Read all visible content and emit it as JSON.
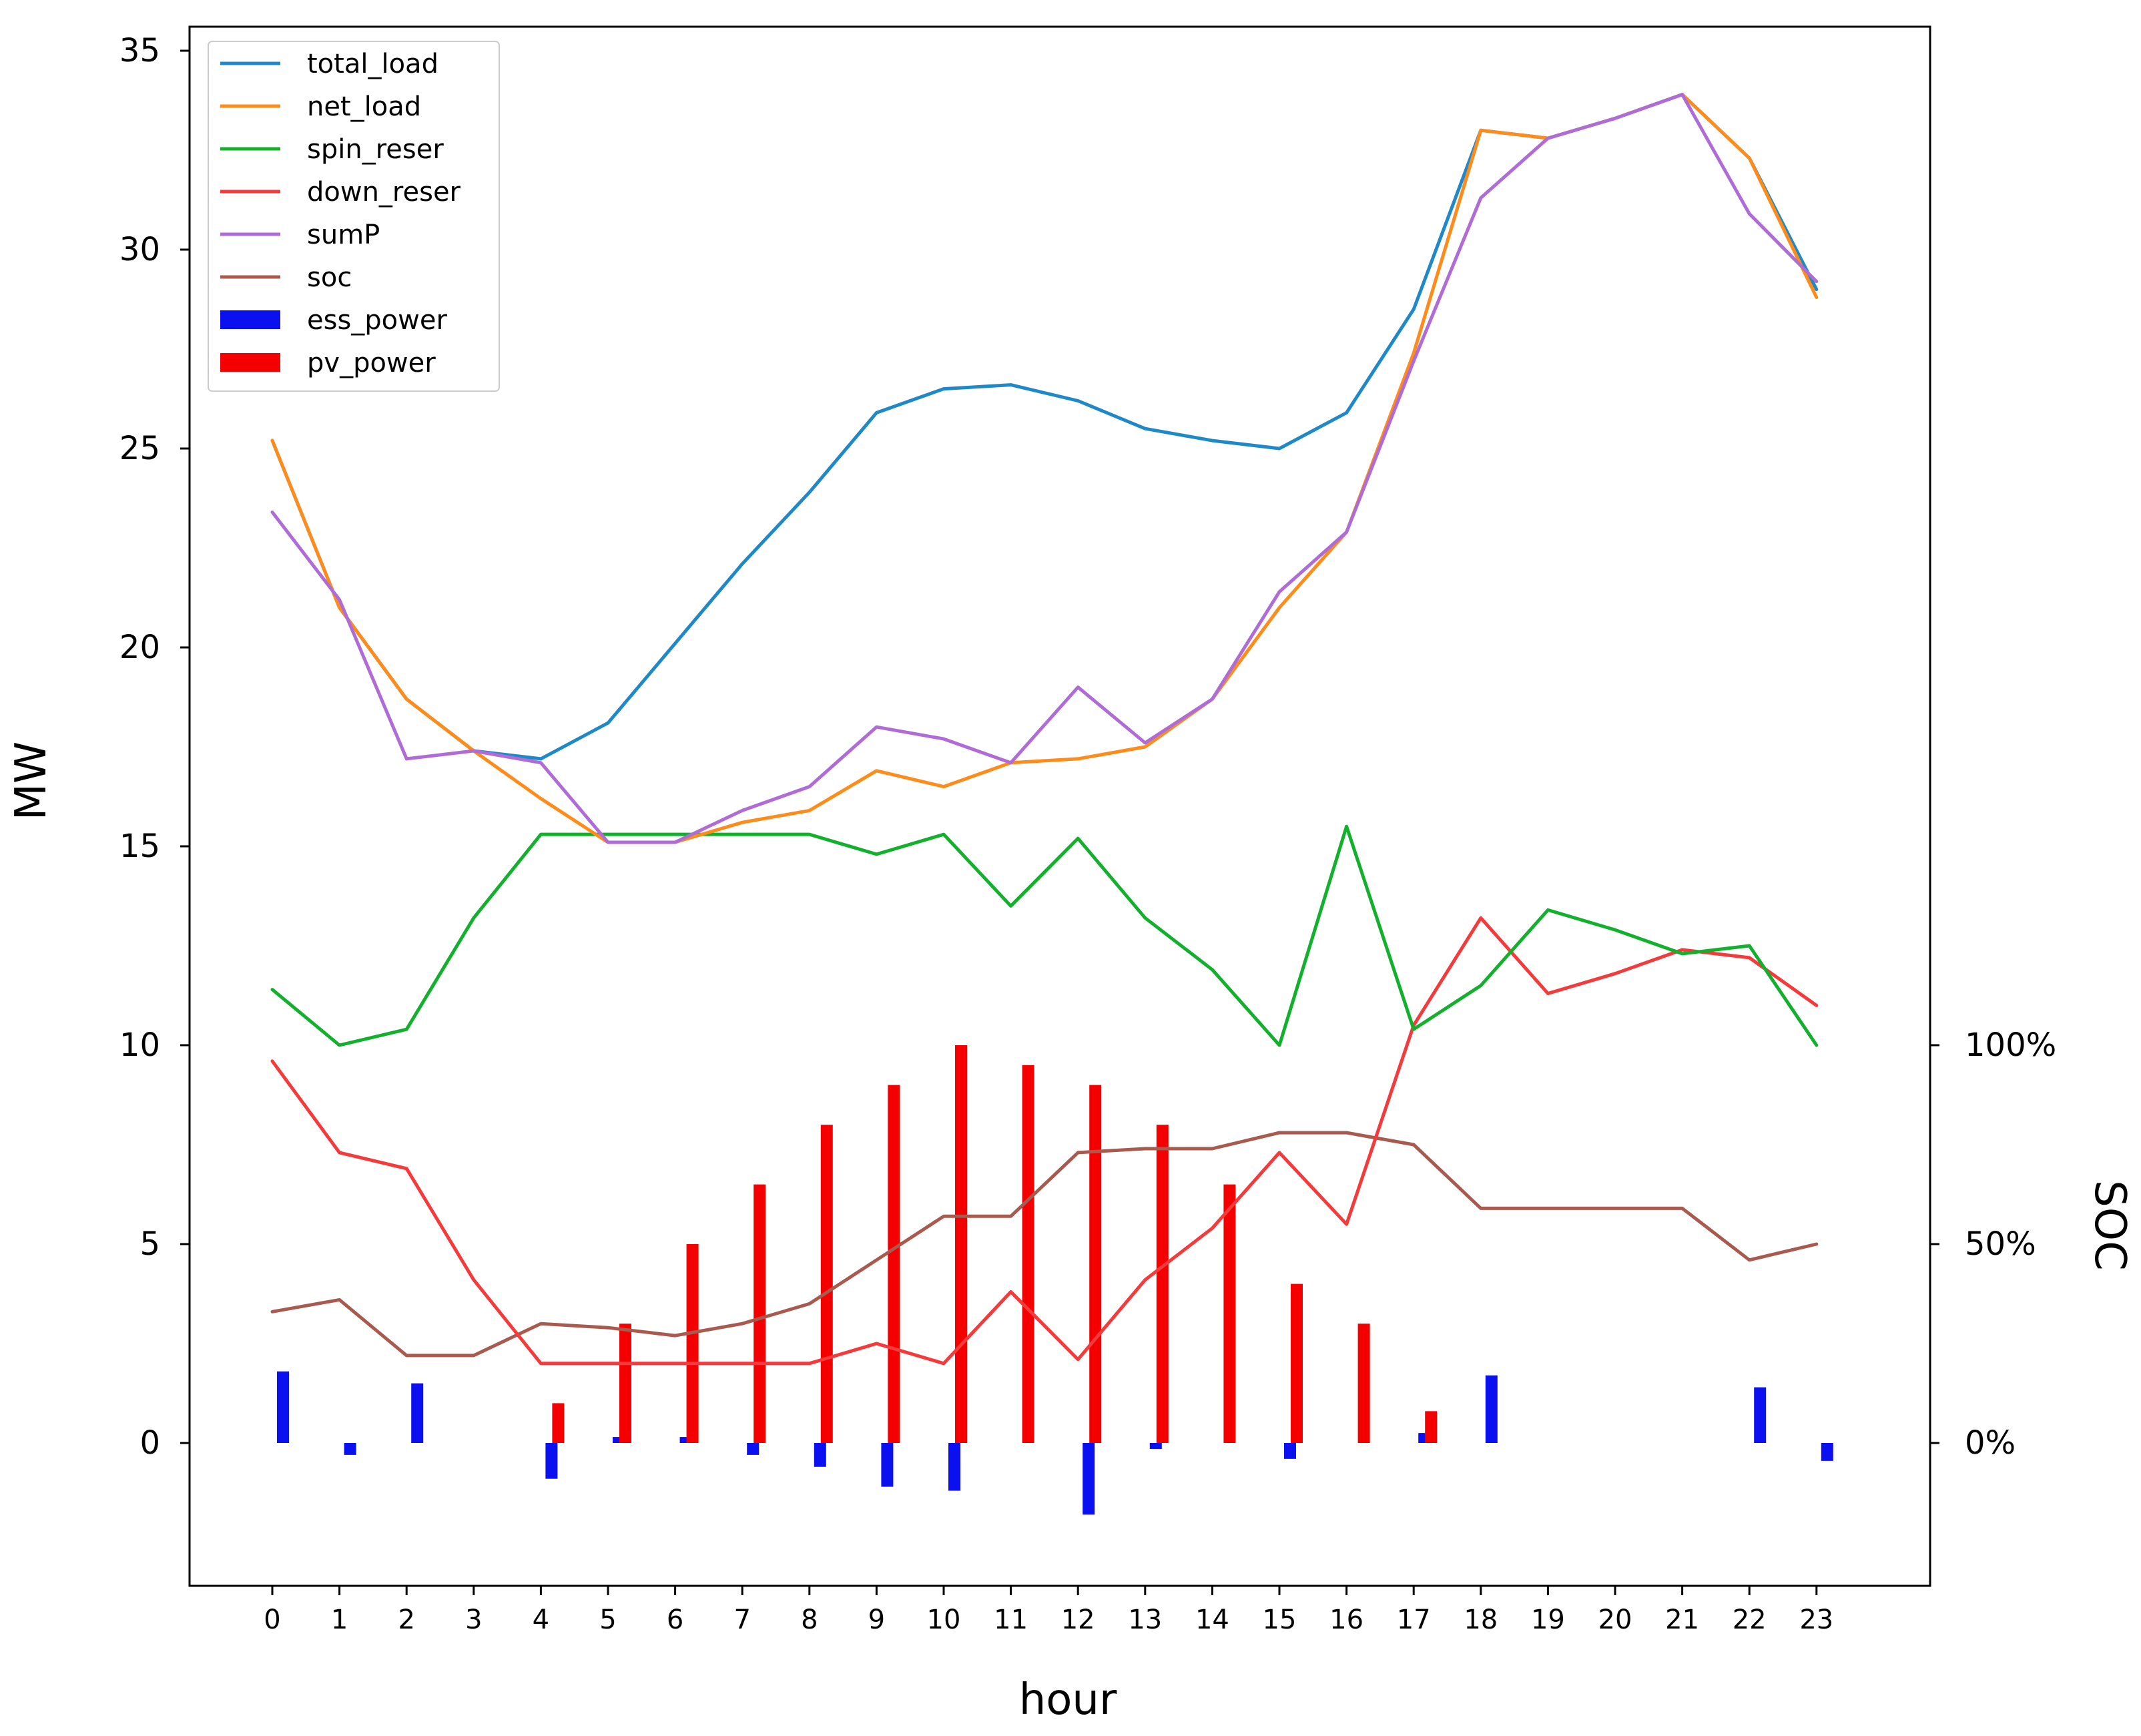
{
  "chart_data": {
    "type": "line",
    "title": "",
    "xlabel": "hour",
    "ylabel": "MW",
    "y2label": "SOC",
    "x": [
      0,
      1,
      2,
      3,
      4,
      5,
      6,
      7,
      8,
      9,
      10,
      11,
      12,
      13,
      14,
      15,
      16,
      17,
      18,
      19,
      20,
      21,
      22,
      23
    ],
    "x_tick_labels": [
      "0",
      "1",
      "2",
      "3",
      "4",
      "5",
      "6",
      "7",
      "8",
      "9",
      "10",
      "11",
      "12",
      "13",
      "14",
      "15",
      "16",
      "17",
      "18",
      "19",
      "20",
      "21",
      "22",
      "23"
    ],
    "ylim": [
      -3.5,
      35.5
    ],
    "y_ticks": [
      0,
      5,
      10,
      15,
      20,
      25,
      30,
      35
    ],
    "y_tick_labels": [
      "0",
      "5",
      "10",
      "15",
      "20",
      "25",
      "30",
      "35"
    ],
    "y2_ticks": [
      0,
      50,
      100
    ],
    "y2_tick_labels": [
      "0%",
      "50%",
      "100%"
    ],
    "y2_range_percent": [
      0,
      100
    ],
    "y2_range_mw_equivalent": [
      0,
      10
    ],
    "legend_position": "upper-left",
    "line_series": [
      {
        "name": "total_load",
        "color": "#1f88c8",
        "values": [
          25.2,
          21.0,
          18.7,
          17.4,
          17.2,
          18.1,
          20.1,
          22.1,
          23.9,
          25.9,
          26.5,
          26.6,
          26.2,
          25.5,
          25.2,
          25.0,
          25.9,
          28.5,
          33.0,
          32.8,
          33.3,
          33.9,
          32.3,
          29.0
        ]
      },
      {
        "name": "net_load",
        "color": "#ff8c1a",
        "values": [
          25.2,
          21.0,
          18.7,
          17.4,
          16.2,
          15.1,
          15.1,
          15.6,
          15.9,
          16.9,
          16.5,
          17.1,
          17.2,
          17.5,
          18.7,
          21.0,
          22.9,
          27.4,
          33.0,
          32.8,
          33.3,
          33.9,
          32.3,
          28.8
        ]
      },
      {
        "name": "spin_reser",
        "color": "#12b02c",
        "values": [
          11.4,
          10.0,
          10.4,
          13.2,
          15.3,
          15.3,
          15.3,
          15.3,
          15.3,
          14.8,
          15.3,
          13.5,
          15.2,
          13.2,
          11.9,
          10.0,
          15.5,
          10.4,
          11.5,
          13.4,
          12.9,
          12.3,
          12.5,
          10.0
        ]
      },
      {
        "name": "down_reser",
        "color": "#f43a3a",
        "values": [
          9.6,
          7.3,
          6.9,
          4.1,
          2.0,
          2.0,
          2.0,
          2.0,
          2.0,
          2.5,
          2.0,
          3.8,
          2.1,
          4.1,
          5.4,
          7.3,
          5.5,
          10.5,
          13.2,
          11.3,
          11.8,
          12.4,
          12.2,
          11.0
        ]
      },
      {
        "name": "sumP",
        "color": "#b06cd6",
        "values": [
          23.4,
          21.2,
          17.2,
          17.4,
          17.1,
          15.1,
          15.1,
          15.9,
          16.5,
          18.0,
          17.7,
          17.1,
          19.0,
          17.6,
          18.7,
          21.4,
          22.9,
          27.2,
          31.3,
          32.8,
          33.3,
          33.9,
          30.9,
          29.2
        ]
      },
      {
        "name": "soc",
        "color": "#a85a4e",
        "values": [
          3.3,
          3.6,
          2.2,
          2.2,
          3.0,
          2.9,
          2.7,
          3.0,
          3.5,
          4.6,
          5.7,
          5.7,
          7.3,
          7.4,
          7.4,
          7.8,
          7.8,
          7.5,
          5.9,
          5.9,
          5.9,
          5.9,
          4.6,
          5.0
        ]
      }
    ],
    "bar_series": [
      {
        "name": "ess_power",
        "color": "#0a10f0",
        "values": [
          1.8,
          -0.3,
          1.5,
          0,
          -0.9,
          0.15,
          0.15,
          -0.3,
          -0.6,
          -1.1,
          -1.2,
          0,
          -1.8,
          -0.15,
          0,
          -0.4,
          0,
          0.25,
          1.7,
          0,
          0,
          0,
          1.4,
          -0.45
        ]
      },
      {
        "name": "pv_power",
        "color": "#f40000",
        "values": [
          0,
          0,
          0,
          0,
          1.0,
          3.0,
          5.0,
          6.5,
          8.0,
          9.0,
          10.0,
          9.5,
          9.0,
          8.0,
          6.5,
          4.0,
          3.0,
          0.8,
          0,
          0,
          0,
          0,
          0,
          0
        ]
      }
    ]
  }
}
